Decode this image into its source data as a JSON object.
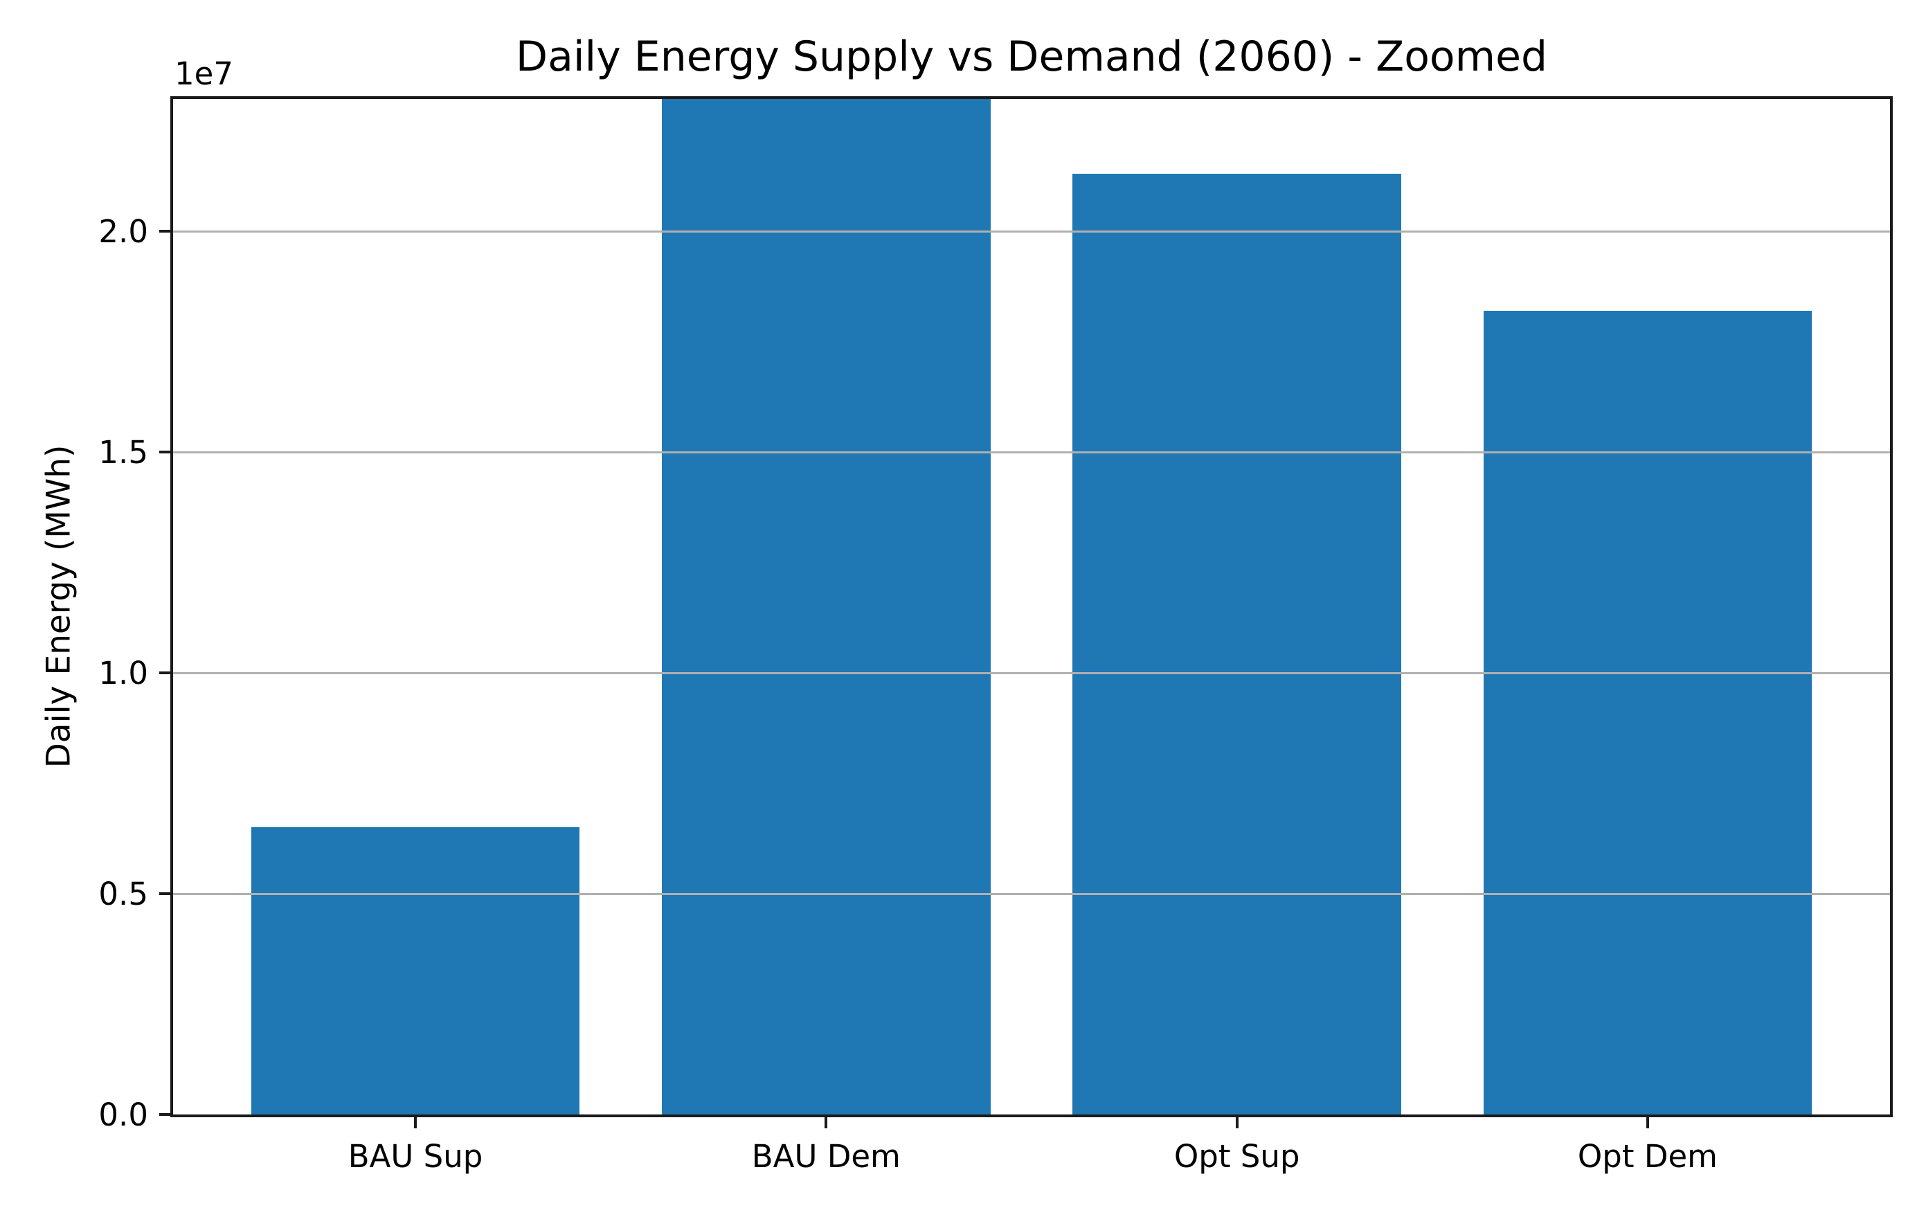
{
  "chart_data": {
    "type": "bar",
    "title": "Daily Energy Supply vs Demand (2060) - Zoomed",
    "xlabel": "",
    "ylabel": "Daily Energy (MWh)",
    "y_offset_text": "1e7",
    "categories": [
      "BAU Sup",
      "BAU Dem",
      "Opt Sup",
      "Opt Dem"
    ],
    "bars": [
      {
        "label": "BAU Sup",
        "value": 6500000,
        "clipped_at_top": false
      },
      {
        "label": "BAU Dem",
        "value": 23000000,
        "clipped_at_top": true,
        "note": "bar extends beyond top of y-axis; displayed value is at least 2.3e7"
      },
      {
        "label": "Opt Sup",
        "value": 21300000,
        "clipped_at_top": false
      },
      {
        "label": "Opt Dem",
        "value": 18200000,
        "clipped_at_top": false
      }
    ],
    "values": [
      6500000,
      23000000,
      21300000,
      18200000
    ],
    "ylim": [
      0,
      23000000
    ],
    "xlim": [
      -0.59,
      3.59
    ],
    "bar_width_fraction": 0.8,
    "ytick_values": [
      0,
      5000000,
      10000000,
      15000000,
      20000000
    ],
    "ytick_labels": [
      "0.0",
      "0.5",
      "1.0",
      "1.5",
      "2.0"
    ],
    "grid": "horizontal",
    "grid_over_bars": true,
    "legend": "none",
    "bar_color": "#1f77b4",
    "grid_color": "#b0b0b0",
    "spine_color": "#1b1b1b",
    "background_color": "#ffffff"
  }
}
